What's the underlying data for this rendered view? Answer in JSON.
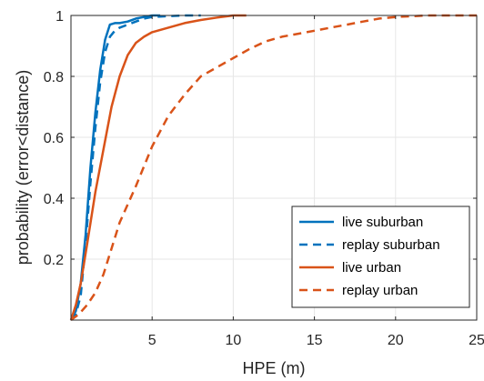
{
  "chart_data": {
    "type": "line",
    "title": "",
    "xlabel": "HPE (m)",
    "ylabel": "probability (error<distance)",
    "xlim": [
      0,
      25
    ],
    "ylim": [
      0,
      1
    ],
    "xticks": [
      5,
      10,
      15,
      20,
      25
    ],
    "yticks": [
      0.2,
      0.4,
      0.6,
      0.8,
      1
    ],
    "xtick_labels": [
      "5",
      "10",
      "15",
      "20",
      "25"
    ],
    "ytick_labels": [
      "0.2",
      "0.4",
      "0.6",
      "0.8",
      "1"
    ],
    "grid": true,
    "legend_position": "bottom-right",
    "series": [
      {
        "name": "live suburban",
        "color": "#0072BD",
        "style": "solid",
        "x": [
          0.0,
          0.3,
          0.6,
          0.9,
          1.2,
          1.5,
          1.8,
          2.1,
          2.4,
          2.7,
          3.0,
          3.5,
          4.0,
          4.5,
          5.0,
          5.5
        ],
        "y": [
          0.0,
          0.03,
          0.12,
          0.28,
          0.5,
          0.68,
          0.82,
          0.92,
          0.97,
          0.975,
          0.975,
          0.98,
          0.99,
          0.995,
          1.0,
          1.0
        ]
      },
      {
        "name": "replay suburban",
        "color": "#0072BD",
        "style": "dashed",
        "x": [
          0.0,
          0.3,
          0.6,
          0.9,
          1.2,
          1.5,
          1.8,
          2.1,
          2.4,
          2.7,
          3.0,
          3.5,
          4.0,
          4.5,
          5.0,
          6.0,
          7.0,
          8.0
        ],
        "y": [
          0.0,
          0.02,
          0.08,
          0.25,
          0.45,
          0.63,
          0.78,
          0.88,
          0.93,
          0.95,
          0.96,
          0.97,
          0.98,
          0.99,
          0.995,
          0.998,
          1.0,
          1.0
        ]
      },
      {
        "name": "live urban",
        "color": "#D95319",
        "style": "solid",
        "x": [
          0.0,
          0.3,
          0.6,
          1.0,
          1.5,
          2.0,
          2.5,
          3.0,
          3.5,
          4.0,
          4.5,
          5.0,
          6.0,
          7.0,
          8.0,
          9.0,
          10.0,
          10.8
        ],
        "y": [
          0.0,
          0.05,
          0.12,
          0.25,
          0.42,
          0.56,
          0.7,
          0.8,
          0.87,
          0.91,
          0.93,
          0.945,
          0.96,
          0.975,
          0.985,
          0.993,
          1.0,
          1.0
        ]
      },
      {
        "name": "replay urban",
        "color": "#D95319",
        "style": "dashed",
        "x": [
          0.0,
          0.5,
          1.0,
          1.5,
          2.0,
          3.0,
          4.0,
          5.0,
          6.0,
          7.0,
          8.0,
          9.0,
          10.0,
          11.0,
          12.0,
          13.0,
          14.0,
          15.0,
          16.0,
          17.0,
          18.0,
          19.0,
          20.0,
          22.0,
          25.0
        ],
        "y": [
          0.0,
          0.02,
          0.05,
          0.09,
          0.15,
          0.32,
          0.44,
          0.57,
          0.67,
          0.74,
          0.8,
          0.83,
          0.86,
          0.89,
          0.915,
          0.93,
          0.94,
          0.95,
          0.96,
          0.97,
          0.98,
          0.99,
          0.995,
          1.0,
          1.0
        ]
      }
    ]
  }
}
